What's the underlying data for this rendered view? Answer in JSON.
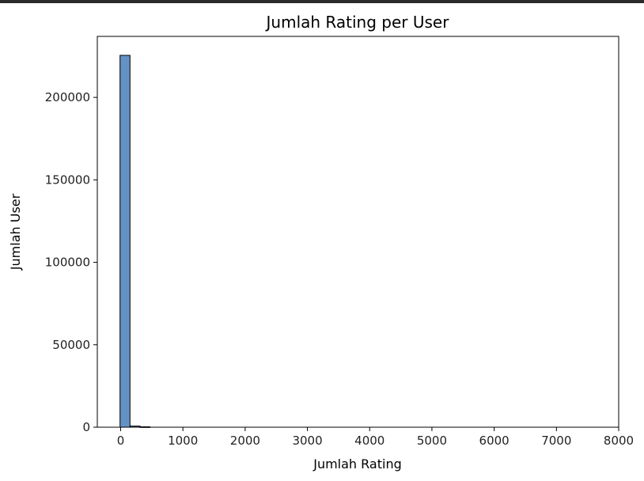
{
  "chart_data": {
    "type": "bar",
    "title": "Jumlah Rating per User",
    "xlabel": "Jumlah Rating",
    "ylabel": "Jumlah User",
    "xlim": [
      -375,
      8000
    ],
    "ylim": [
      0,
      237000
    ],
    "xticks": [
      0,
      1000,
      2000,
      3000,
      4000,
      5000,
      6000,
      7000,
      8000
    ],
    "yticks": [
      0,
      50000,
      100000,
      150000,
      200000
    ],
    "bars": [
      {
        "x0": -10,
        "x1": 150,
        "value": 225500
      },
      {
        "x0": 150,
        "x1": 310,
        "value": 700
      },
      {
        "x0": 310,
        "x1": 470,
        "value": 250
      }
    ],
    "bar_color": "#6592c4",
    "edge_color": "#000000",
    "grid": false
  }
}
